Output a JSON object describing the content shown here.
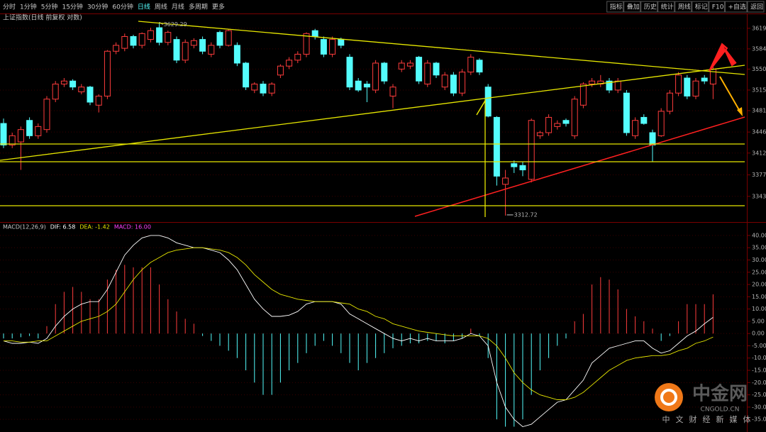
{
  "toolbar": {
    "periods": [
      "分时",
      "1分钟",
      "5分钟",
      "15分钟",
      "30分钟",
      "60分钟",
      "日线",
      "周线",
      "月线",
      "多周期",
      "更多"
    ],
    "active": 6,
    "tools": [
      "指标",
      "叠加",
      "历史",
      "统计",
      "周线",
      "标记",
      "F10",
      "+自选",
      "返回"
    ]
  },
  "watermark": {
    "name": "中金网",
    "site": "CNGOLD.CN",
    "tagline": "中文财经新媒体"
  },
  "chart_data": [
    {
      "type": "candlestick",
      "title": "上证指数(日线 前复权 对数)",
      "log_scale": true,
      "grid": true,
      "up_color": "#ff3c3c",
      "down_color": "#54fcfc",
      "ylim": [
        3306,
        3631
      ],
      "yticks": [
        3619,
        3584,
        3550,
        3515,
        3481,
        3446,
        3412,
        3377,
        3343
      ],
      "open": [
        3460,
        3425,
        3430,
        3465,
        3440,
        3450,
        3500,
        3525,
        3530,
        3512,
        3520,
        3490,
        3505,
        3580,
        3585,
        3605,
        3590,
        3600,
        3620,
        3595,
        3600,
        3565,
        3590,
        3600,
        3575,
        3612,
        3590,
        3590,
        3560,
        3515,
        3525,
        3510,
        3540,
        3555,
        3565,
        3575,
        3615,
        3600,
        3575,
        3600,
        3570,
        3530,
        3525,
        3515,
        3560,
        3505,
        3550,
        3555,
        3570,
        3525,
        3560,
        3520,
        3540,
        3510,
        3545,
        3565,
        3520,
        3470,
        3362,
        3395,
        3392,
        3370,
        3440,
        3445,
        3455,
        3465,
        3440,
        3490,
        3525,
        3525,
        3530,
        3515,
        3510,
        3440,
        3470,
        3445,
        3440,
        3480,
        3510,
        3535,
        3505,
        3535,
        3525
      ],
      "high": [
        3468,
        3445,
        3455,
        3470,
        3460,
        3505,
        3530,
        3535,
        3533,
        3525,
        3522,
        3508,
        3582,
        3595,
        3610,
        3608,
        3612,
        3620,
        3629.29,
        3615,
        3605,
        3600,
        3602,
        3605,
        3595,
        3615,
        3618,
        3595,
        3562,
        3528,
        3530,
        3528,
        3558,
        3570,
        3580,
        3612,
        3618,
        3605,
        3605,
        3603,
        3575,
        3535,
        3530,
        3565,
        3562,
        3525,
        3565,
        3565,
        3572,
        3565,
        3562,
        3545,
        3545,
        3550,
        3575,
        3568,
        3525,
        3472,
        3385,
        3400,
        3398,
        3468,
        3448,
        3475,
        3465,
        3468,
        3505,
        3528,
        3535,
        3540,
        3535,
        3535,
        3515,
        3470,
        3475,
        3450,
        3485,
        3515,
        3545,
        3540,
        3535,
        3540,
        3555
      ],
      "low": [
        3420,
        3420,
        3385,
        3435,
        3435,
        3445,
        3495,
        3520,
        3515,
        3508,
        3490,
        3478,
        3500,
        3575,
        3580,
        3585,
        3585,
        3595,
        3590,
        3590,
        3560,
        3560,
        3585,
        3575,
        3570,
        3585,
        3588,
        3555,
        3515,
        3510,
        3505,
        3505,
        3535,
        3550,
        3560,
        3570,
        3600,
        3570,
        3570,
        3585,
        3515,
        3512,
        3495,
        3510,
        3525,
        3485,
        3545,
        3550,
        3525,
        3520,
        3535,
        3515,
        3505,
        3505,
        3540,
        3540,
        3470,
        3360,
        3312.72,
        3380,
        3375,
        3365,
        3435,
        3440,
        3450,
        3455,
        3435,
        3485,
        3520,
        3520,
        3510,
        3510,
        3440,
        3435,
        3458,
        3398,
        3438,
        3475,
        3505,
        3500,
        3500,
        3525,
        3500
      ],
      "close": [
        3425,
        3440,
        3450,
        3440,
        3455,
        3500,
        3525,
        3530,
        3520,
        3520,
        3495,
        3505,
        3580,
        3590,
        3605,
        3590,
        3610,
        3615,
        3595,
        3612,
        3565,
        3595,
        3598,
        3580,
        3590,
        3590,
        3615,
        3560,
        3520,
        3525,
        3510,
        3525,
        3555,
        3565,
        3575,
        3610,
        3605,
        3575,
        3600,
        3590,
        3520,
        3515,
        3520,
        3560,
        3530,
        3520,
        3560,
        3560,
        3530,
        3560,
        3540,
        3540,
        3510,
        3545,
        3570,
        3545,
        3472,
        3375,
        3372,
        3390,
        3385,
        3465,
        3445,
        3470,
        3460,
        3460,
        3500,
        3525,
        3530,
        3530,
        3515,
        3530,
        3445,
        3465,
        3460,
        3425,
        3480,
        3510,
        3540,
        3505,
        3530,
        3530,
        3550
      ]
    },
    {
      "type": "macd",
      "legend": [
        "MACD(12,26,9)",
        "DIF: 6.58",
        "DEA: -1.42",
        "MACD: 16.00"
      ],
      "ylim": [
        -39,
        44.6
      ],
      "yticks": [
        {
          "value": 40,
          "label": "40.00"
        },
        {
          "value": 35,
          "label": "35.00"
        },
        {
          "value": 30,
          "label": "30.00"
        },
        {
          "value": 25,
          "label": "25.00"
        },
        {
          "value": 20,
          "label": "20.00"
        },
        {
          "value": 15,
          "label": "15.00"
        },
        {
          "value": 10,
          "label": "10.00"
        },
        {
          "value": 5,
          "label": "5.00"
        },
        {
          "value": 0,
          "label": "0.00"
        },
        {
          "value": -5,
          "label": "-5.00"
        },
        {
          "value": -10,
          "label": "-10.00"
        },
        {
          "value": -15,
          "label": "-15.00"
        },
        {
          "value": -20,
          "label": "-20.00"
        },
        {
          "value": -25,
          "label": "-25.00"
        },
        {
          "value": -30,
          "label": "-30.00"
        },
        {
          "value": -35,
          "label": "-35.00"
        }
      ],
      "dif_color": "#ffffff",
      "dea_color": "#e6e600",
      "up_color": "#ff3c3c",
      "down_color": "#54fcfc",
      "hist": [
        -2,
        -2,
        -1.5,
        -1,
        -2,
        3,
        12,
        17,
        19,
        17,
        14,
        14,
        22,
        26,
        28,
        27,
        27,
        27,
        20,
        14,
        9,
        6,
        4,
        -1,
        -3,
        -5,
        -7,
        -10,
        -15,
        -20,
        -25,
        -25,
        -20,
        -15,
        -12,
        -8,
        -5,
        -3,
        -5,
        -8,
        -12,
        -15,
        -12,
        -10,
        -8,
        -6,
        -5,
        -4,
        -4,
        -3,
        -3,
        -4,
        -3,
        -2,
        2,
        -1,
        -10,
        -35,
        -38,
        -38,
        -35,
        -25,
        -15,
        -10,
        -5,
        -2,
        5,
        8,
        20,
        23,
        22,
        18,
        10,
        7,
        5,
        2,
        -3,
        -1,
        5,
        12,
        12,
        12,
        16
      ],
      "dif": [
        -3,
        -4,
        -4,
        -3.5,
        -4,
        -2,
        3,
        7,
        10,
        12,
        13,
        13,
        18,
        25,
        32,
        36,
        39,
        40,
        40,
        39,
        37,
        36,
        35,
        35,
        34,
        33,
        30,
        26,
        20,
        14,
        10,
        7,
        7,
        7.5,
        9,
        12,
        13,
        13,
        13,
        12,
        8,
        6,
        4,
        2,
        0,
        -2,
        -3,
        -2,
        -3,
        -2,
        -3,
        -3,
        -3,
        -2,
        0,
        -1,
        -5,
        -20,
        -30,
        -35,
        -38,
        -37,
        -34,
        -31,
        -28,
        -27,
        -23,
        -19,
        -12,
        -9,
        -6,
        -5,
        -4,
        -3,
        -3,
        -6,
        -8,
        -7,
        -4,
        -1,
        1,
        4,
        6.58
      ],
      "dea": [
        -3,
        -3,
        -3.5,
        -3.5,
        -3,
        -3,
        -1,
        1,
        3,
        5,
        6,
        7,
        9,
        12,
        17,
        22,
        26,
        29,
        31,
        33,
        34,
        34.5,
        35,
        35,
        34.5,
        34,
        33,
        31,
        28,
        24,
        21,
        18,
        16,
        15,
        14,
        13.5,
        13,
        13,
        13,
        12.5,
        12,
        10,
        9,
        7,
        6,
        4,
        3,
        2,
        1,
        0.5,
        0,
        -0.5,
        -1,
        -1,
        -1,
        -1,
        -2,
        -5,
        -10,
        -16,
        -20,
        -23,
        -25,
        -26,
        -27,
        -27,
        -26,
        -24,
        -21,
        -18,
        -15,
        -13,
        -11,
        -10,
        -9.5,
        -9,
        -9,
        -8.5,
        -7,
        -6,
        -4,
        -3,
        -1.42
      ]
    }
  ]
}
